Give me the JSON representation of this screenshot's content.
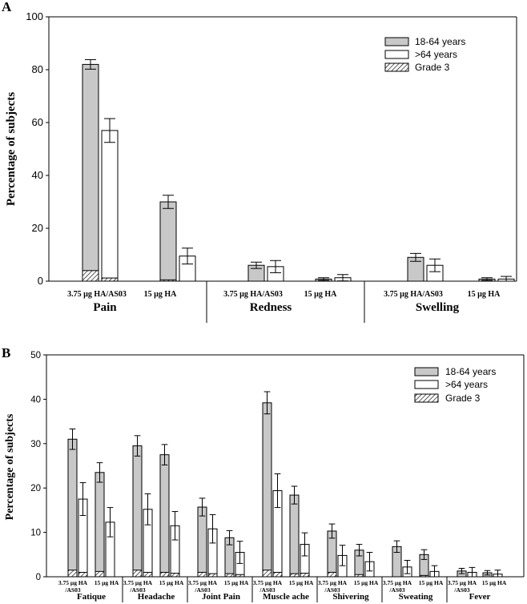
{
  "chart_data": [
    {
      "panel": "A",
      "type": "bar",
      "ylabel": "Percentage of subjects",
      "ylim": [
        0,
        100
      ],
      "yticks": [
        0,
        20,
        40,
        60,
        80,
        100
      ],
      "groups": [
        {
          "name": "Pain",
          "formulations": [
            {
              "label": "3.75 µg HA/AS03",
              "y1864": 82,
              "e1864": 1.8,
              "g3_1864": 4,
              "ygt64": 57,
              "egt64": 4.5,
              "g3_gt64": 1.2
            },
            {
              "label": "15 µg HA",
              "y1864": 30,
              "e1864": 2.5,
              "g3_1864": 0.5,
              "ygt64": 9.5,
              "egt64": 3,
              "g3_gt64": 0
            }
          ]
        },
        {
          "name": "Redness",
          "formulations": [
            {
              "label": "3.75 µg HA/AS03",
              "y1864": 6,
              "e1864": 1.2,
              "g3_1864": 0,
              "ygt64": 5.5,
              "egt64": 2.3,
              "g3_gt64": 0
            },
            {
              "label": "15 µg HA",
              "y1864": 0.8,
              "e1864": 0.5,
              "g3_1864": 0,
              "ygt64": 1.3,
              "egt64": 1.2,
              "g3_gt64": 0
            }
          ]
        },
        {
          "name": "Swelling",
          "formulations": [
            {
              "label": "3.75 µg HA/AS03",
              "y1864": 9,
              "e1864": 1.5,
              "g3_1864": 0,
              "ygt64": 6,
              "egt64": 2.4,
              "g3_gt64": 0
            },
            {
              "label": "15 µg HA",
              "y1864": 0.8,
              "e1864": 0.5,
              "g3_1864": 0,
              "ygt64": 0.8,
              "egt64": 1,
              "g3_gt64": 0
            }
          ]
        }
      ],
      "legend": [
        "18-64 years",
        ">64 years",
        "Grade 3"
      ]
    },
    {
      "panel": "B",
      "type": "bar",
      "ylabel": "Percentage of subjects",
      "ylim": [
        0,
        50
      ],
      "yticks": [
        0,
        10,
        20,
        30,
        40,
        50
      ],
      "groups": [
        {
          "name": "Fatique",
          "formulations": [
            {
              "label": "3.75 µg HA /AS03",
              "y1864": 31,
              "e1864": 2.3,
              "g3_1864": 1.5,
              "ygt64": 17.5,
              "egt64": 3.7,
              "g3_gt64": 1
            },
            {
              "label": "15 µg HA",
              "y1864": 23.5,
              "e1864": 2.2,
              "g3_1864": 1.2,
              "ygt64": 12.3,
              "egt64": 3.3,
              "g3_gt64": 0
            }
          ]
        },
        {
          "name": "Headache",
          "formulations": [
            {
              "label": "3.75 µg HA /AS03",
              "y1864": 29.5,
              "e1864": 2.3,
              "g3_1864": 1.5,
              "ygt64": 15.2,
              "egt64": 3.5,
              "g3_gt64": 1
            },
            {
              "label": "15 µg HA",
              "y1864": 27.5,
              "e1864": 2.3,
              "g3_1864": 1,
              "ygt64": 11.5,
              "egt64": 3.2,
              "g3_gt64": 0.8
            }
          ]
        },
        {
          "name": "Joint Pain",
          "formulations": [
            {
              "label": "3.75 µg HA /AS03",
              "y1864": 15.7,
              "e1864": 2,
              "g3_1864": 1,
              "ygt64": 10.8,
              "egt64": 3.2,
              "g3_gt64": 0.7
            },
            {
              "label": "15 µg HA",
              "y1864": 8.8,
              "e1864": 1.6,
              "g3_1864": 0.7,
              "ygt64": 5.5,
              "egt64": 2.5,
              "g3_gt64": 0.5
            }
          ]
        },
        {
          "name": "Muscle ache",
          "formulations": [
            {
              "label": "3.75 µg HA /AS03",
              "y1864": 39.2,
              "e1864": 2.5,
              "g3_1864": 1.5,
              "ygt64": 19.4,
              "egt64": 3.8,
              "g3_gt64": 1
            },
            {
              "label": "15 µg HA",
              "y1864": 18.4,
              "e1864": 2,
              "g3_1864": 0.7,
              "ygt64": 7.3,
              "egt64": 2.6,
              "g3_gt64": 0.8
            }
          ]
        },
        {
          "name": "Shivering",
          "formulations": [
            {
              "label": "3.75 µg HA /AS03",
              "y1864": 10.3,
              "e1864": 1.6,
              "g3_1864": 1,
              "ygt64": 4.8,
              "egt64": 2.3,
              "g3_gt64": 0
            },
            {
              "label": "15 µg HA",
              "y1864": 6,
              "e1864": 1.3,
              "g3_1864": 0.5,
              "ygt64": 3.4,
              "egt64": 2.1,
              "g3_gt64": 0
            }
          ]
        },
        {
          "name": "Sweating",
          "formulations": [
            {
              "label": "3.75 µg HA /AS03",
              "y1864": 6.8,
              "e1864": 1.3,
              "g3_1864": 0,
              "ygt64": 2.2,
              "egt64": 1.5,
              "g3_gt64": 0
            },
            {
              "label": "15 µg HA",
              "y1864": 5,
              "e1864": 1.1,
              "g3_1864": 0.3,
              "ygt64": 1.2,
              "egt64": 1.3,
              "g3_gt64": 0
            }
          ]
        },
        {
          "name": "Fever",
          "formulations": [
            {
              "label": "3.75 µg HA /AS03",
              "y1864": 1.3,
              "e1864": 0.6,
              "g3_1864": 0,
              "ygt64": 1,
              "egt64": 1.1,
              "g3_gt64": 0
            },
            {
              "label": "15 µg HA",
              "y1864": 0.9,
              "e1864": 0.5,
              "g3_1864": 0,
              "ygt64": 0.6,
              "egt64": 0.9,
              "g3_gt64": 0
            }
          ]
        }
      ],
      "legend": [
        "18-64 years",
        ">64 years",
        "Grade 3"
      ]
    }
  ]
}
